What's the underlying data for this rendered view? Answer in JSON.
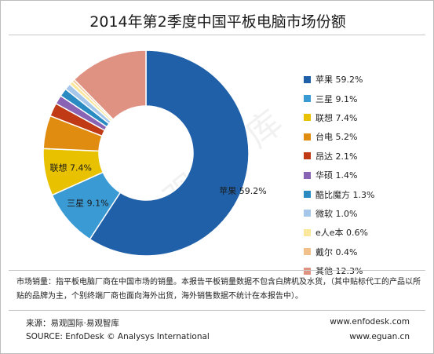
{
  "chart_data": {
    "type": "pie",
    "title": "2014年第2季度中国平板电脑市场份额",
    "series": [
      {
        "name": "苹果",
        "value": 59.2,
        "label": "苹果 59.2%",
        "slice_label": "苹果 59.2%",
        "color": "#2060a8"
      },
      {
        "name": "三星",
        "value": 9.1,
        "label": "三星 9.1%",
        "slice_label": "三星 9.1%",
        "color": "#3a9ad4"
      },
      {
        "name": "联想",
        "value": 7.4,
        "label": "联想 7.4%",
        "slice_label": "联想 7.4%",
        "color": "#e8c200"
      },
      {
        "name": "台电",
        "value": 5.2,
        "label": "台电 5.2%",
        "slice_label": "",
        "color": "#df8c10"
      },
      {
        "name": "昂达",
        "value": 2.1,
        "label": "昂达 2.1%",
        "slice_label": "",
        "color": "#c03a16"
      },
      {
        "name": "华硕",
        "value": 1.4,
        "label": "华硕 1.4%",
        "slice_label": "",
        "color": "#8a64b4"
      },
      {
        "name": "酷比魔方",
        "value": 1.3,
        "label": "酷比魔方 1.3%",
        "slice_label": "",
        "color": "#2a8ac2"
      },
      {
        "name": "微软",
        "value": 1.0,
        "label": "微软 1.0%",
        "slice_label": "",
        "color": "#a6c6ea"
      },
      {
        "name": "e人e本",
        "value": 0.6,
        "label": "e人e本 0.6%",
        "slice_label": "",
        "color": "#fae79a"
      },
      {
        "name": "戴尔",
        "value": 0.4,
        "label": "戴尔 0.4%",
        "slice_label": "",
        "color": "#f2c08a"
      },
      {
        "name": "其他",
        "value": 12.3,
        "label": "其他 12.3%",
        "slice_label": "",
        "color": "#df9182"
      }
    ],
    "legend_position": "right"
  },
  "watermark": "易观智库",
  "note": "市场销量：指平板电脑厂商在中国市场的销量。本报告平板销量数据不包含白牌机及水货，（其中贴标代工的产品以所贴的品牌为主，个别终端厂商也面向海外出货，海外销售数据不统计在本报告中）。",
  "source_cn": "来源：易观国际·易观智库",
  "source_en": "SOURCE: EnfoDesk © Analysys International",
  "url1": "www.enfodesk.com",
  "url2": "www.eguan.cn"
}
